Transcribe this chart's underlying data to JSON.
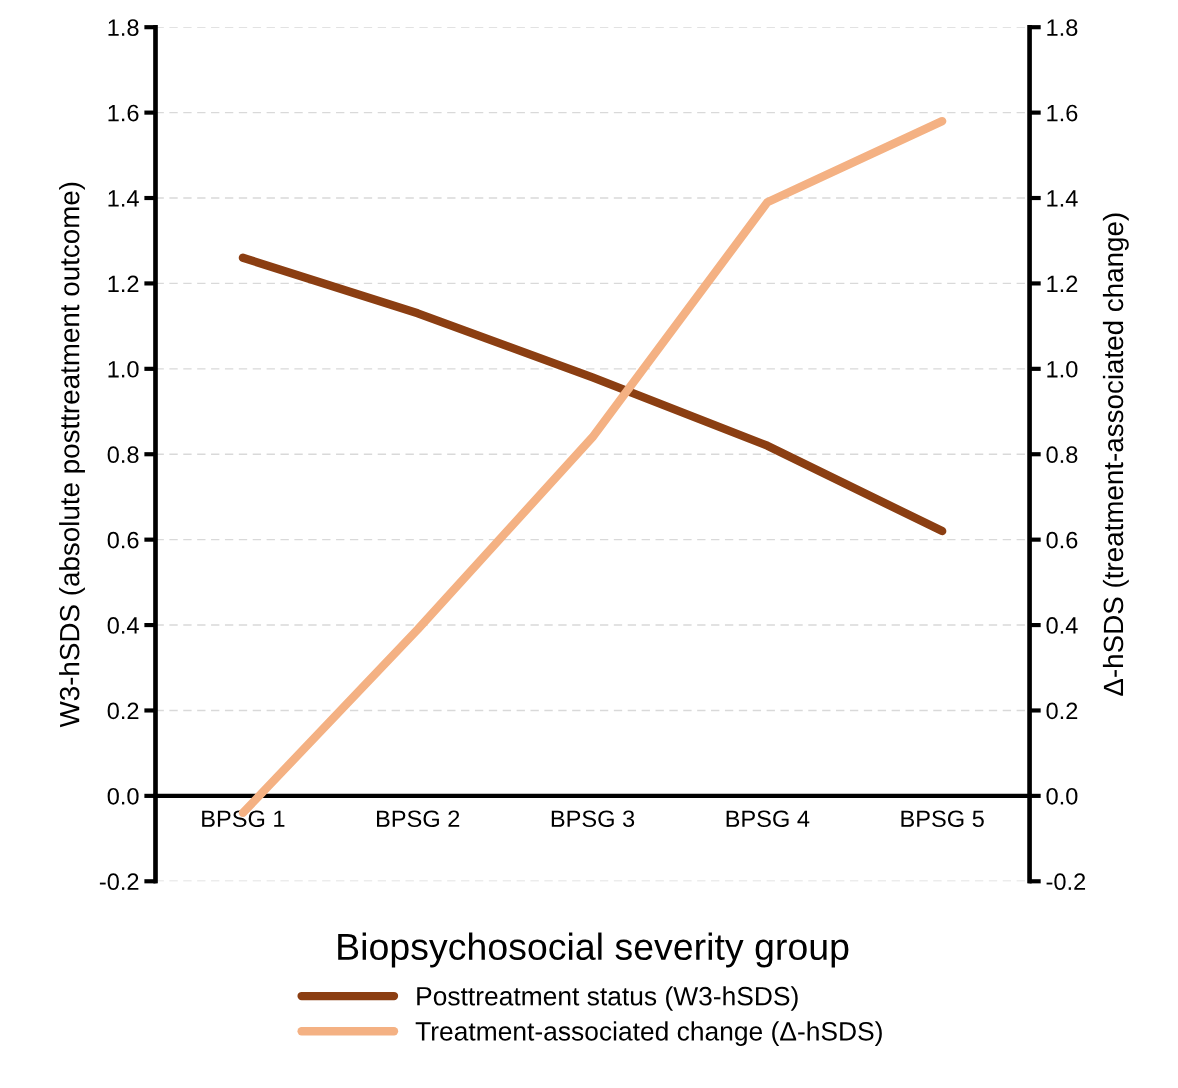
{
  "chart_data": {
    "type": "line",
    "xlabel": "Biopsychosocial severity group",
    "ylabel": "W3-hSDS (absolute posttreatment outcome)",
    "y2label": "Δ-hSDS (treatment-associated change)",
    "categories": [
      "BPSG 1",
      "BPSG 2",
      "BPSG 3",
      "BPSG 4",
      "BPSG 5"
    ],
    "series": [
      {
        "name": "Posttreatment status (W3-hSDS)",
        "color": "#8b3e12",
        "values": [
          1.26,
          1.13,
          0.98,
          0.82,
          0.62
        ]
      },
      {
        "name": "Treatment-associated change (Δ-hSDS)",
        "color": "#f4b183",
        "axis": "y2",
        "values": [
          -0.04,
          0.39,
          0.84,
          1.39,
          1.58
        ]
      }
    ],
    "ylim": [
      -0.2,
      1.8
    ],
    "yticks": [
      {
        "value": -0.2,
        "label": "-0.2"
      },
      {
        "value": 0,
        "label": "0.0"
      },
      {
        "value": 0.2,
        "label": "0.2"
      },
      {
        "value": 0.4,
        "label": "0.4"
      },
      {
        "value": 0.6,
        "label": "0.6"
      },
      {
        "value": 0.8,
        "label": "0.8"
      },
      {
        "value": 1,
        "label": "1.0"
      },
      {
        "value": 1.2,
        "label": "1.2"
      },
      {
        "value": 1.4,
        "label": "1.4"
      },
      {
        "value": 1.6,
        "label": "1.6"
      },
      {
        "value": 1.8,
        "label": "1.8"
      }
    ],
    "y2lim": [
      -0.2,
      1.8
    ],
    "y2ticks": [
      {
        "value": -0.2,
        "label": "-0.2"
      },
      {
        "value": 0,
        "label": "0.0"
      },
      {
        "value": 0.2,
        "label": "0.2"
      },
      {
        "value": 0.4,
        "label": "0.4"
      },
      {
        "value": 0.6,
        "label": "0.6"
      },
      {
        "value": 0.8,
        "label": "0.8"
      },
      {
        "value": 1,
        "label": "1.0"
      },
      {
        "value": 1.2,
        "label": "1.2"
      },
      {
        "value": 1.4,
        "label": "1.4"
      },
      {
        "value": 1.6,
        "label": "1.6"
      },
      {
        "value": 1.8,
        "label": "1.8"
      }
    ],
    "grid": "y",
    "legend": "bottom",
    "marker": "none",
    "line_style": "solid"
  }
}
